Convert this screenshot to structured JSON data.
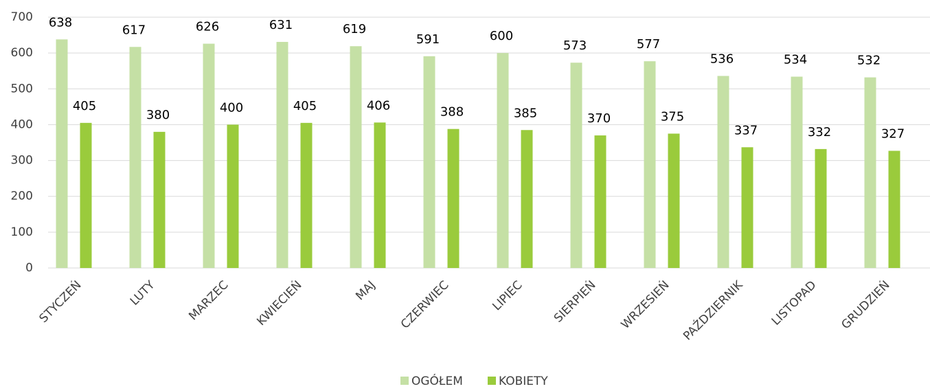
{
  "chart_data": {
    "type": "bar",
    "categories": [
      "STYCZEŃ",
      "LUTY",
      "MARZEC",
      "KWIECIEŃ",
      "MAJ",
      "CZERWIEC",
      "LIPIEC",
      "SIERPIEŃ",
      "WRZESIEŃ",
      "PAŹDZIERNIK",
      "LISTOPAD",
      "GRUDZIEŃ"
    ],
    "series": [
      {
        "name": "OGÓŁEM",
        "color": "#c5e0a5",
        "values": [
          638,
          617,
          626,
          631,
          619,
          591,
          600,
          573,
          577,
          536,
          534,
          532
        ]
      },
      {
        "name": "KOBIETY",
        "color": "#9acb3c",
        "values": [
          405,
          380,
          400,
          405,
          406,
          388,
          385,
          370,
          375,
          337,
          332,
          327
        ]
      }
    ],
    "ylim": [
      0,
      700
    ],
    "yticks": [
      0,
      100,
      200,
      300,
      400,
      500,
      600,
      700
    ],
    "grid": true,
    "legend": "bottom"
  }
}
